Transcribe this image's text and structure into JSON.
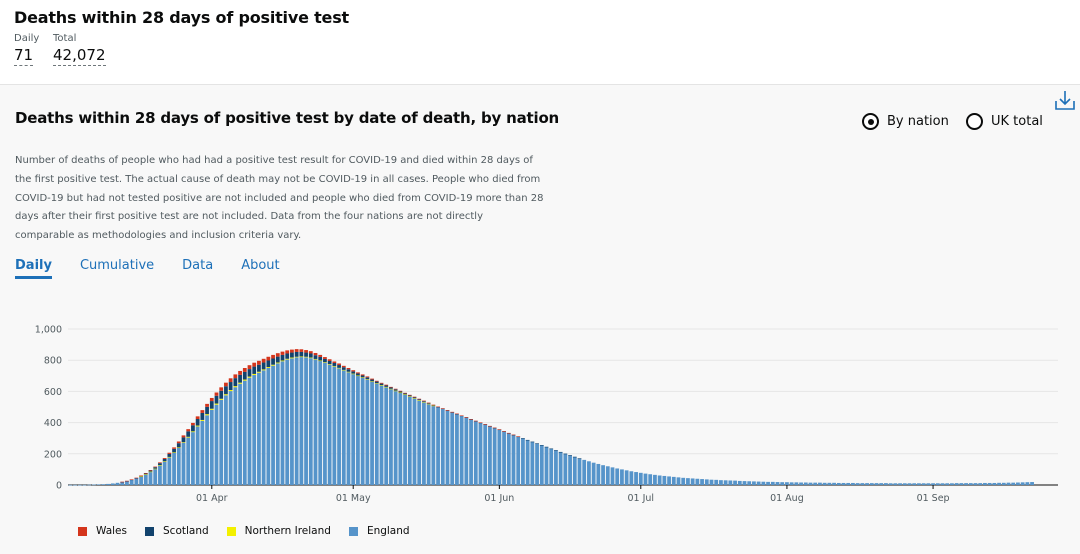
{
  "header": {
    "title": "Deaths within 28 days of positive test",
    "daily_label": "Daily",
    "daily_value": "71",
    "total_label": "Total",
    "total_value": "42,072"
  },
  "card": {
    "title": "Deaths within 28 days of positive test by date of death, by nation",
    "radio_by_nation": "By nation",
    "radio_uk_total": "UK total",
    "selected_radio": "By nation",
    "download_icon": "download-icon",
    "description": "Number of deaths of people who had had a positive test result for COVID-19 and died within 28 days of the first positive test. The actual cause of death may not be COVID-19 in all cases. People who died from COVID-19 but had not tested positive are not included and people who died from COVID-19 more than 28 days after their first positive test are not included. Data from the four nations are not directly comparable as methodologies and inclusion criteria vary.",
    "tabs": [
      "Daily",
      "Cumulative",
      "Data",
      "About"
    ],
    "active_tab": "Daily"
  },
  "colors": {
    "wales": "#d4351c",
    "scotland": "#12436d",
    "northern_ireland": "#f3f000",
    "england": "#5694ca",
    "accent": "#1d70b8"
  },
  "chart_data": {
    "type": "bar",
    "stacked": true,
    "x_ticks": [
      "01 Apr",
      "01 May",
      "01 Jun",
      "01 Jul",
      "01 Aug",
      "01 Sep"
    ],
    "y_ticks": [
      "0",
      "200",
      "400",
      "600",
      "800",
      "1,000"
    ],
    "ylim": [
      0,
      1100
    ],
    "start_date": "2020-03-02",
    "series": [
      {
        "name": "Wales",
        "color": "#d4351c",
        "values": [
          0,
          0,
          0,
          0,
          0,
          0,
          0,
          0,
          0,
          0,
          0,
          1,
          1,
          1,
          2,
          2,
          3,
          3,
          4,
          5,
          6,
          8,
          9,
          11,
          13,
          14,
          15,
          17,
          18,
          19,
          20,
          21,
          22,
          23,
          24,
          24,
          25,
          25,
          25,
          25,
          25,
          24,
          24,
          23,
          22,
          21,
          20,
          19,
          18,
          17,
          16,
          15,
          14,
          13,
          12,
          11,
          10,
          10,
          9,
          8,
          8,
          7,
          7,
          6,
          6,
          5,
          5,
          5,
          4,
          4,
          4,
          3,
          3,
          3,
          3,
          3,
          2,
          2,
          2,
          2,
          2,
          2,
          2,
          1,
          1,
          1,
          1,
          1,
          1,
          1,
          1,
          1,
          1,
          1,
          1,
          1,
          0,
          0,
          0,
          0,
          0,
          0,
          0,
          0,
          0,
          0,
          0,
          0,
          0,
          0,
          0,
          0,
          0,
          0,
          0,
          0,
          0,
          0,
          0,
          0,
          0,
          0,
          0,
          0,
          0,
          0,
          0,
          0,
          0,
          0,
          0,
          0,
          0,
          0,
          0,
          0,
          0,
          0,
          0,
          0,
          0,
          0,
          0,
          0,
          0,
          0,
          0,
          0,
          0,
          0,
          0,
          0,
          0,
          0,
          0,
          0,
          0,
          0,
          0,
          0,
          0,
          0,
          0,
          0,
          0,
          0,
          0,
          0,
          0,
          0,
          0,
          0,
          0,
          0,
          0,
          0,
          0,
          0,
          0,
          0,
          0,
          0,
          0,
          0,
          0,
          0,
          0,
          0,
          0,
          0,
          0,
          0,
          0,
          0,
          0,
          0,
          0,
          0,
          0,
          0,
          0,
          0,
          0,
          0,
          0,
          0,
          0,
          0,
          0,
          0
        ]
      },
      {
        "name": "Scotland",
        "color": "#12436d",
        "values": [
          0,
          0,
          0,
          0,
          0,
          0,
          0,
          0,
          0,
          0,
          0,
          1,
          1,
          2,
          3,
          4,
          5,
          7,
          9,
          12,
          15,
          19,
          23,
          27,
          31,
          35,
          39,
          42,
          45,
          47,
          49,
          50,
          51,
          51,
          51,
          51,
          50,
          49,
          48,
          47,
          45,
          44,
          42,
          40,
          38,
          36,
          34,
          32,
          31,
          29,
          27,
          26,
          24,
          23,
          21,
          20,
          19,
          18,
          17,
          16,
          14,
          13,
          12,
          12,
          11,
          10,
          9,
          9,
          8,
          8,
          7,
          7,
          6,
          6,
          5,
          5,
          5,
          4,
          4,
          4,
          3,
          3,
          3,
          3,
          3,
          2,
          2,
          2,
          2,
          2,
          2,
          2,
          1,
          1,
          1,
          1,
          1,
          1,
          1,
          1,
          1,
          1,
          1,
          1,
          1,
          1,
          1,
          1,
          1,
          0,
          0,
          0,
          0,
          0,
          0,
          0,
          0,
          0,
          0,
          0,
          0,
          0,
          0,
          0,
          0,
          0,
          0,
          0,
          0,
          0,
          0,
          0,
          0,
          0,
          0,
          0,
          0,
          0,
          0,
          0,
          0,
          0,
          0,
          0,
          0,
          0,
          0,
          0,
          0,
          0,
          0,
          0,
          0,
          0,
          0,
          0,
          0,
          0,
          0,
          0,
          0,
          0,
          0,
          0,
          0,
          0,
          0,
          0,
          0,
          0,
          0,
          0,
          0,
          0,
          0,
          0,
          0,
          0,
          0,
          0,
          0,
          0,
          0,
          0,
          0,
          0,
          0,
          0,
          0,
          0,
          0,
          0,
          0,
          0,
          0,
          0,
          0,
          0,
          0,
          0,
          0,
          0,
          0,
          0,
          0
        ]
      },
      {
        "name": "Northern Ireland",
        "color": "#f3f000",
        "values": [
          0,
          0,
          0,
          0,
          0,
          0,
          0,
          0,
          0,
          0,
          0,
          0,
          0,
          0,
          0,
          1,
          1,
          1,
          1,
          2,
          2,
          3,
          3,
          4,
          4,
          5,
          5,
          6,
          6,
          7,
          7,
          7,
          7,
          7,
          7,
          7,
          7,
          7,
          7,
          7,
          6,
          6,
          6,
          6,
          5,
          5,
          5,
          5,
          4,
          4,
          4,
          4,
          3,
          3,
          3,
          3,
          3,
          3,
          2,
          2,
          2,
          2,
          2,
          2,
          1,
          1,
          1,
          1,
          1,
          1,
          1,
          1,
          1,
          1,
          1,
          1,
          1,
          1,
          0,
          0,
          0,
          0,
          0,
          0,
          0,
          0,
          0,
          0,
          0,
          0,
          0,
          0,
          0,
          0,
          0,
          0,
          0,
          0,
          0,
          0,
          0,
          0,
          0,
          0,
          0,
          0,
          0,
          0,
          0,
          0,
          0,
          0,
          0,
          0,
          0,
          0,
          0,
          0,
          0,
          0,
          0,
          0,
          0,
          0,
          0,
          0,
          0,
          0,
          0,
          0,
          0,
          0,
          0,
          0,
          0,
          0,
          0,
          0,
          0,
          0,
          0,
          0,
          0,
          0,
          0,
          0,
          0,
          0,
          0,
          0,
          0,
          0,
          0,
          0,
          0,
          0,
          0,
          0,
          0,
          0,
          0,
          0,
          0,
          0,
          0,
          0,
          0,
          0,
          0,
          0,
          0,
          0,
          0,
          0,
          0,
          0,
          0,
          0,
          0,
          0,
          0,
          0,
          0,
          0,
          0,
          0,
          0,
          0,
          0,
          0,
          0,
          0,
          0,
          0,
          0,
          0,
          0,
          0,
          0,
          0,
          0,
          0,
          0,
          0,
          0,
          0
        ]
      },
      {
        "name": "England",
        "color": "#5694ca",
        "values": [
          1,
          1,
          1,
          1,
          2,
          3,
          4,
          5,
          7,
          10,
          14,
          19,
          25,
          33,
          42,
          54,
          68,
          85,
          104,
          126,
          150,
          177,
          206,
          237,
          270,
          304,
          339,
          375,
          411,
          447,
          482,
          515,
          546,
          575,
          602,
          627,
          649,
          669,
          688,
          705,
          720,
          735,
          750,
          765,
          780,
          793,
          804,
          812,
          818,
          820,
          818,
          813,
          805,
          795,
          784,
          772,
          760,
          748,
          736,
          724,
          712,
          700,
          688,
          676,
          664,
          652,
          640,
          628,
          616,
          604,
          592,
          580,
          568,
          556,
          544,
          532,
          520,
          508,
          497,
          486,
          475,
          464,
          453,
          442,
          431,
          420,
          409,
          398,
          387,
          376,
          365,
          354,
          343,
          332,
          321,
          310,
          299,
          288,
          277,
          266,
          255,
          244,
          233,
          222,
          211,
          200,
          190,
          180,
          170,
          161,
          152,
          143,
          135,
          127,
          120,
          113,
          106,
          100,
          94,
          88,
          83,
          78,
          73,
          69,
          65,
          61,
          58,
          55,
          52,
          49,
          46,
          44,
          42,
          40,
          38,
          36,
          34,
          33,
          31,
          30,
          29,
          28,
          26,
          25,
          24,
          23,
          22,
          21,
          20,
          20,
          19,
          18,
          18,
          17,
          17,
          16,
          16,
          15,
          15,
          15,
          14,
          14,
          14,
          13,
          13,
          13,
          13,
          12,
          12,
          12,
          12,
          12,
          12,
          12,
          11,
          11,
          11,
          11,
          11,
          11,
          11,
          11,
          11,
          11,
          11,
          11,
          11,
          11,
          12,
          12,
          12,
          12,
          12,
          12,
          13,
          13,
          13,
          14,
          14,
          15,
          15,
          16,
          17,
          18,
          19
        ]
      }
    ],
    "legend_position": "bottom-left",
    "grid": true
  }
}
